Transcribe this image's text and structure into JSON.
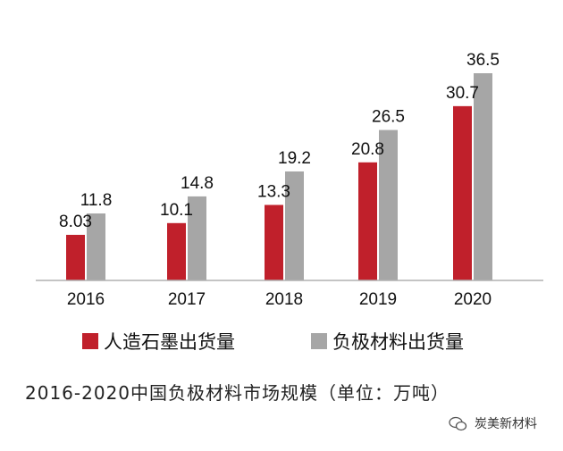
{
  "chart_data": {
    "type": "bar",
    "title": "2016-2020中国负极材料市场规模（单位：万吨）",
    "categories": [
      "2016",
      "2017",
      "2018",
      "2019",
      "2020"
    ],
    "series": [
      {
        "name": "人造石墨出货量",
        "values": [
          8.03,
          10.1,
          13.3,
          20.8,
          30.7
        ],
        "labels": [
          "8.03",
          "10.1",
          "13.3",
          "20.8",
          "30.7"
        ],
        "color": "#c0202b"
      },
      {
        "name": "负极材料出货量",
        "values": [
          11.8,
          14.8,
          19.2,
          26.5,
          36.5
        ],
        "labels": [
          "11.8",
          "14.8",
          "19.2",
          "26.5",
          "36.5"
        ],
        "color": "#a6a6a6"
      }
    ],
    "ylim": [
      0,
      36.5
    ],
    "grid": false,
    "legend": "bottom"
  },
  "watermark": {
    "text": "炭美新材料",
    "icon": "wechat-icon"
  }
}
